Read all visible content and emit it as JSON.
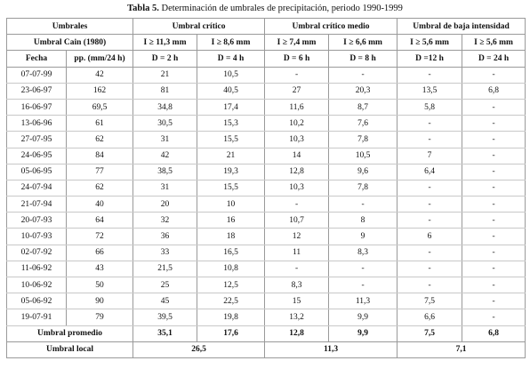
{
  "title": {
    "label": "Tabla 5.",
    "text": "Determinación de umbrales de precipitación, periodo 1990-1999"
  },
  "table": {
    "header": [
      [
        "Umbrales",
        "Umbral crítico",
        "Umbral crítico medio",
        "Umbral de baja intensidad"
      ],
      [
        "Umbral Cain (1980)",
        "I ≥ 11,3 mm",
        "I ≥ 8,6 mm",
        "I ≥ 7,4 mm",
        "I ≥ 6,6 mm",
        "I ≥ 5,6 mm",
        "I ≥ 5,6 mm"
      ],
      [
        "Fecha",
        "pp. (mm/24 h)",
        "D = 2 h",
        "D = 4 h",
        "D = 6 h",
        "D = 8 h",
        "D =12 h",
        "D = 24 h"
      ]
    ],
    "rows": [
      [
        "07-07-99",
        "42",
        "21",
        "10,5",
        "-",
        "-",
        "-",
        "-"
      ],
      [
        "23-06-97",
        "162",
        "81",
        "40,5",
        "27",
        "20,3",
        "13,5",
        "6,8"
      ],
      [
        "16-06-97",
        "69,5",
        "34,8",
        "17,4",
        "11,6",
        "8,7",
        "5,8",
        "-"
      ],
      [
        "13-06-96",
        "61",
        "30,5",
        "15,3",
        "10,2",
        "7,6",
        "-",
        "-"
      ],
      [
        "27-07-95",
        "62",
        "31",
        "15,5",
        "10,3",
        "7,8",
        "-",
        "-"
      ],
      [
        "24-06-95",
        "84",
        "42",
        "21",
        "14",
        "10,5",
        "7",
        "-"
      ],
      [
        "05-06-95",
        "77",
        "38,5",
        "19,3",
        "12,8",
        "9,6",
        "6,4",
        "-"
      ],
      [
        "24-07-94",
        "62",
        "31",
        "15,5",
        "10,3",
        "7,8",
        "-",
        "-"
      ],
      [
        "21-07-94",
        "40",
        "20",
        "10",
        "-",
        "-",
        "-",
        "-"
      ],
      [
        "20-07-93",
        "64",
        "32",
        "16",
        "10,7",
        "8",
        "-",
        "-"
      ],
      [
        "10-07-93",
        "72",
        "36",
        "18",
        "12",
        "9",
        "6",
        "-"
      ],
      [
        "02-07-92",
        "66",
        "33",
        "16,5",
        "11",
        "8,3",
        "-",
        "-"
      ],
      [
        "11-06-92",
        "43",
        "21,5",
        "10,8",
        "-",
        "-",
        "-",
        "-"
      ],
      [
        "10-06-92",
        "50",
        "25",
        "12,5",
        "8,3",
        "-",
        "-",
        "-"
      ],
      [
        "05-06-92",
        "90",
        "45",
        "22,5",
        "15",
        "11,3",
        "7,5",
        "-"
      ],
      [
        "19-07-91",
        "79",
        "39,5",
        "19,8",
        "13,2",
        "9,9",
        "6,6",
        "-"
      ]
    ],
    "footer": [
      [
        "Umbral promedio",
        "35,1",
        "17,6",
        "12,8",
        "9,9",
        "7,5",
        "6,8"
      ],
      [
        "Umbral local",
        "26,5",
        "11,3",
        "7,1"
      ]
    ]
  }
}
